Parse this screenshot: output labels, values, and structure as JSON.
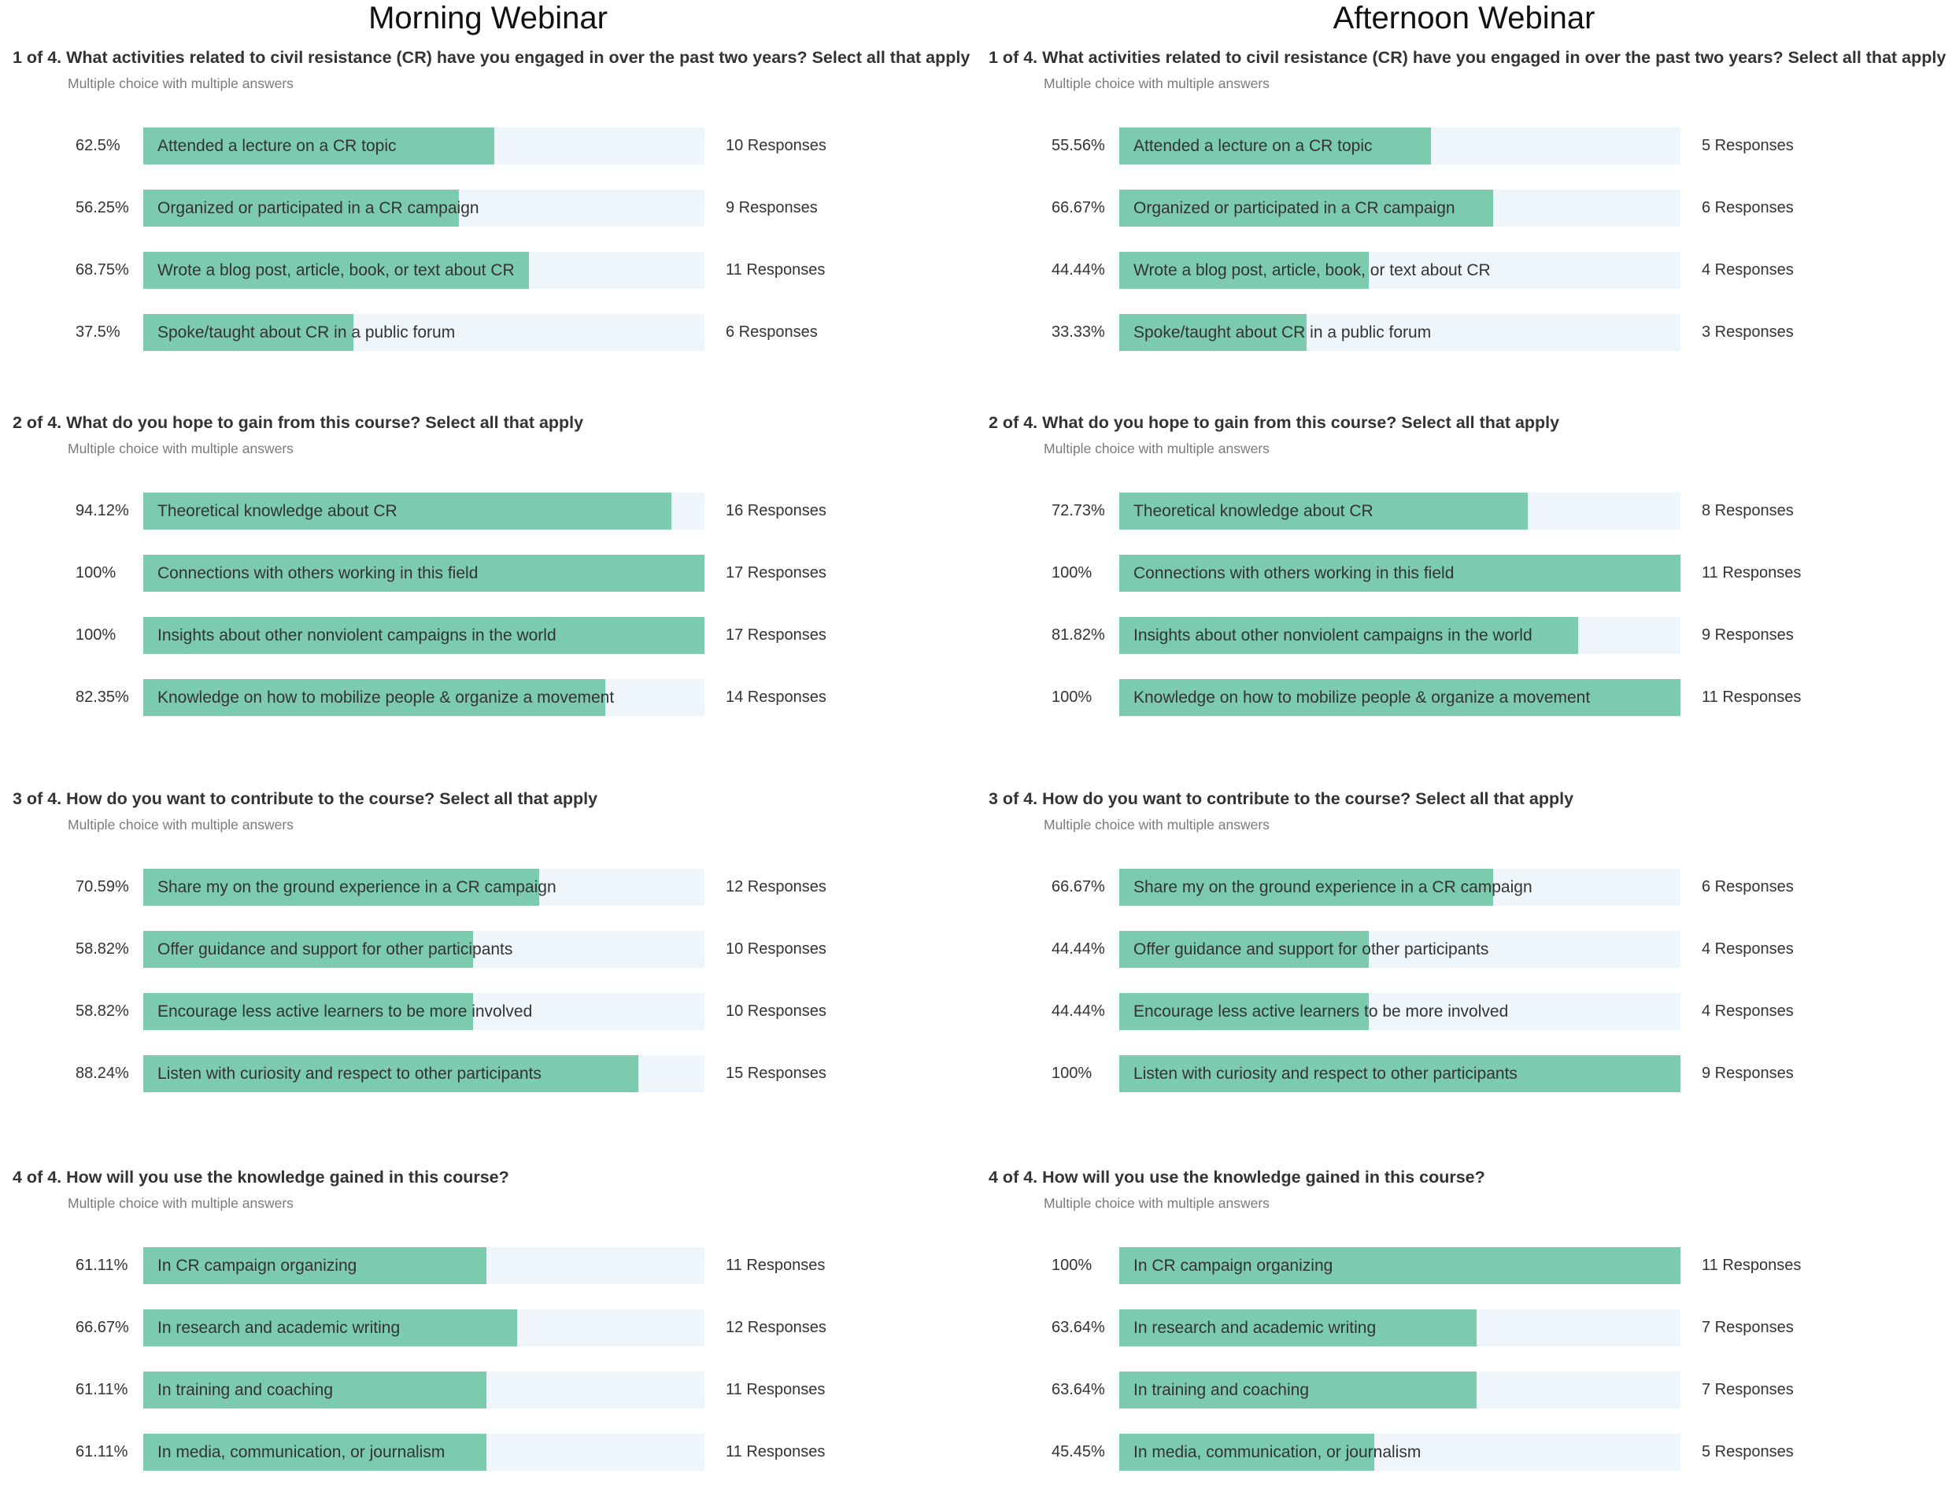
{
  "chart_data": [
    {
      "type": "bar",
      "panel": "Morning Webinar",
      "title": "1 of 4. What activities related to civil resistance (CR) have you engaged in over the past two years? Select all that apply",
      "subtitle": "Multiple choice with multiple answers",
      "categories": [
        "Attended a lecture on a CR topic",
        "Organized or participated in a CR campaign",
        "Wrote a blog post, article, book, or text about CR",
        "Spoke/taught about CR in a public forum"
      ],
      "percent_labels": [
        "62.5%",
        "56.25%",
        "68.75%",
        "37.5%"
      ],
      "values": [
        62.5,
        56.25,
        68.75,
        37.5
      ],
      "response_labels": [
        "10 Responses",
        "9 Responses",
        "11 Responses",
        "6 Responses"
      ],
      "xlim": [
        0,
        100
      ]
    },
    {
      "type": "bar",
      "panel": "Morning Webinar",
      "title": "2 of 4. What do you hope to gain from this course? Select all that apply",
      "subtitle": "Multiple choice with multiple answers",
      "categories": [
        "Theoretical knowledge about CR",
        "Connections with others working in this field",
        "Insights about other nonviolent campaigns in the world",
        "Knowledge on how to mobilize people & organize a movement"
      ],
      "percent_labels": [
        "94.12%",
        "100%",
        "100%",
        "82.35%"
      ],
      "values": [
        94.12,
        100,
        100,
        82.35
      ],
      "response_labels": [
        "16 Responses",
        "17 Responses",
        "17 Responses",
        "14 Responses"
      ],
      "xlim": [
        0,
        100
      ]
    },
    {
      "type": "bar",
      "panel": "Morning Webinar",
      "title": "3 of 4. How do you want to contribute to the course? Select all that apply",
      "subtitle": "Multiple choice with multiple answers",
      "categories": [
        "Share my on the ground experience in a CR campaign",
        "Offer guidance and support for other participants",
        "Encourage less active learners to be more involved",
        "Listen with curiosity and respect to other participants"
      ],
      "percent_labels": [
        "70.59%",
        "58.82%",
        "58.82%",
        "88.24%"
      ],
      "values": [
        70.59,
        58.82,
        58.82,
        88.24
      ],
      "response_labels": [
        "12 Responses",
        "10 Responses",
        "10 Responses",
        "15 Responses"
      ],
      "xlim": [
        0,
        100
      ]
    },
    {
      "type": "bar",
      "panel": "Morning Webinar",
      "title": "4 of 4. How will you use the knowledge gained in this course?",
      "subtitle": "Multiple choice with multiple answers",
      "categories": [
        "In CR campaign organizing",
        "In research and academic writing",
        "In training and coaching",
        "In media, communication, or journalism"
      ],
      "percent_labels": [
        "61.11%",
        "66.67%",
        "61.11%",
        "61.11%"
      ],
      "values": [
        61.11,
        66.67,
        61.11,
        61.11
      ],
      "response_labels": [
        "11 Responses",
        "12 Responses",
        "11 Responses",
        "11 Responses"
      ],
      "xlim": [
        0,
        100
      ]
    },
    {
      "type": "bar",
      "panel": "Afternoon Webinar",
      "title": "1 of 4. What activities related to civil resistance (CR) have you engaged in over the past two years? Select all that apply",
      "subtitle": "Multiple choice with multiple answers",
      "categories": [
        "Attended a lecture on a CR topic",
        "Organized or participated in a CR campaign",
        "Wrote a blog post, article, book, or text about CR",
        "Spoke/taught about CR in a public forum"
      ],
      "percent_labels": [
        "55.56%",
        "66.67%",
        "44.44%",
        "33.33%"
      ],
      "values": [
        55.56,
        66.67,
        44.44,
        33.33
      ],
      "response_labels": [
        "5 Responses",
        "6 Responses",
        "4 Responses",
        "3 Responses"
      ],
      "xlim": [
        0,
        100
      ]
    },
    {
      "type": "bar",
      "panel": "Afternoon Webinar",
      "title": "2 of 4. What do you hope to gain from this course? Select all that apply",
      "subtitle": "Multiple choice with multiple answers",
      "categories": [
        "Theoretical knowledge about CR",
        "Connections with others working in this field",
        "Insights about other nonviolent campaigns in the world",
        "Knowledge on how to mobilize people & organize a movement"
      ],
      "percent_labels": [
        "72.73%",
        "100%",
        "81.82%",
        "100%"
      ],
      "values": [
        72.73,
        100,
        81.82,
        100
      ],
      "response_labels": [
        "8 Responses",
        "11 Responses",
        "9 Responses",
        "11 Responses"
      ],
      "xlim": [
        0,
        100
      ]
    },
    {
      "type": "bar",
      "panel": "Afternoon Webinar",
      "title": "3 of 4. How do you want to contribute to the course? Select all that apply",
      "subtitle": "Multiple choice with multiple answers",
      "categories": [
        "Share my on the ground experience in a CR campaign",
        "Offer guidance and support for other participants",
        "Encourage less active learners to be more involved",
        "Listen with curiosity and respect to other participants"
      ],
      "percent_labels": [
        "66.67%",
        "44.44%",
        "44.44%",
        "100%"
      ],
      "values": [
        66.67,
        44.44,
        44.44,
        100
      ],
      "response_labels": [
        "6 Responses",
        "4 Responses",
        "4 Responses",
        "9 Responses"
      ],
      "xlim": [
        0,
        100
      ]
    },
    {
      "type": "bar",
      "panel": "Afternoon Webinar",
      "title": "4 of 4. How will you use the knowledge gained in this course?",
      "subtitle": "Multiple choice with multiple answers",
      "categories": [
        "In CR campaign organizing",
        "In research and academic writing",
        "In training and coaching",
        "In media, communication, or journalism"
      ],
      "percent_labels": [
        "100%",
        "63.64%",
        "63.64%",
        "45.45%"
      ],
      "values": [
        100,
        63.64,
        63.64,
        45.45
      ],
      "response_labels": [
        "11 Responses",
        "7 Responses",
        "7 Responses",
        "5 Responses"
      ],
      "xlim": [
        0,
        100
      ]
    }
  ],
  "panels": [
    {
      "title": "Morning Webinar"
    },
    {
      "title": "Afternoon Webinar"
    }
  ],
  "colors": {
    "fill": "#7ccbae",
    "track": "#eef5fb",
    "text": "#333333",
    "subtitle": "#7b7b7b"
  }
}
